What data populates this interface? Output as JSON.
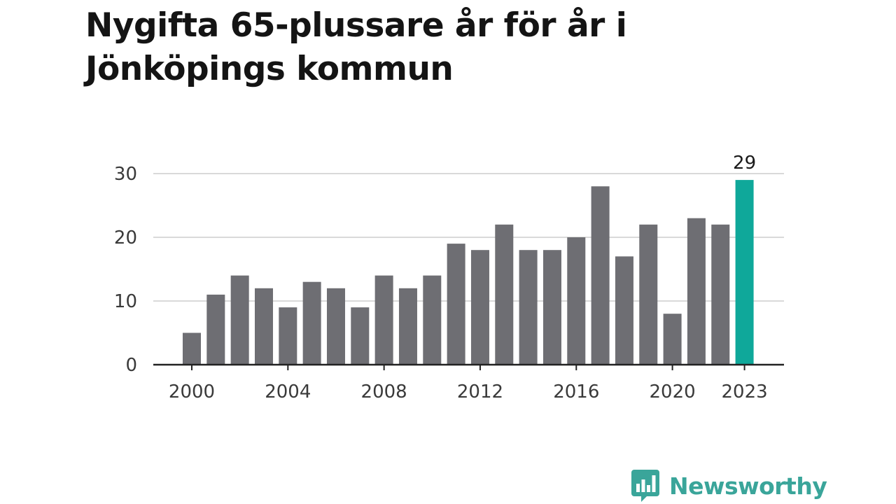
{
  "title": "Nygifta 65-plussare år för år i Jönköpings kommun",
  "brand": {
    "name": "Newsworthy",
    "icon": "newsworthy-logo-icon",
    "color": "#3aa59a"
  },
  "colors": {
    "bar": "#6e6e73",
    "highlight": "#0fa89a",
    "grid": "#d9d9d9",
    "axis": "#222222"
  },
  "chart_data": {
    "type": "bar",
    "title": "Nygifta 65-plussare år för år i Jönköpings kommun",
    "xlabel": "",
    "ylabel": "",
    "categories": [
      2000,
      2001,
      2002,
      2003,
      2004,
      2005,
      2006,
      2007,
      2008,
      2009,
      2010,
      2011,
      2012,
      2013,
      2014,
      2015,
      2016,
      2017,
      2018,
      2019,
      2020,
      2021,
      2022,
      2023
    ],
    "values": [
      5,
      11,
      14,
      12,
      9,
      13,
      12,
      9,
      14,
      12,
      14,
      19,
      18,
      22,
      18,
      18,
      20,
      28,
      17,
      22,
      8,
      23,
      22,
      29
    ],
    "ylim": [
      0,
      30
    ],
    "yticks": [
      0,
      10,
      20,
      30
    ],
    "xtick_labels": [
      2000,
      2004,
      2008,
      2012,
      2016,
      2020,
      2023
    ],
    "highlight": {
      "category": 2023,
      "label": "29"
    },
    "grid": true,
    "legend": "none"
  }
}
